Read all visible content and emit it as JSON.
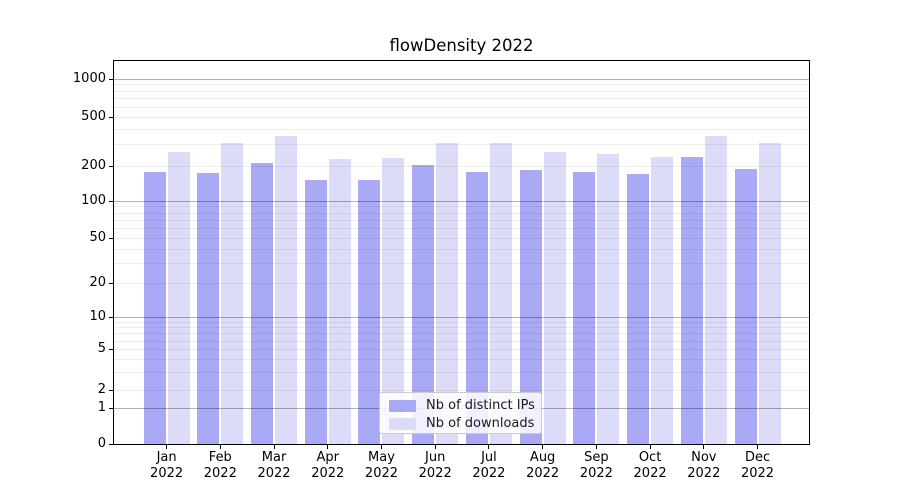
{
  "chart_data": {
    "type": "bar",
    "title": "flowDensity 2022",
    "categories": [
      "Jan",
      "Feb",
      "Mar",
      "Apr",
      "May",
      "Jun",
      "Jul",
      "Aug",
      "Sep",
      "Oct",
      "Nov",
      "Dec"
    ],
    "xtick_year": "2022",
    "series": [
      {
        "name": "Nb of distinct IPs",
        "color": "#a9a9f6",
        "values": [
          178,
          173,
          210,
          152,
          151,
          205,
          178,
          186,
          179,
          172,
          238,
          190
        ]
      },
      {
        "name": "Nb of downloads",
        "color": "#dcdcf8",
        "values": [
          258,
          305,
          352,
          226,
          234,
          308,
          309,
          260,
          252,
          236,
          350,
          306
        ]
      }
    ],
    "yscale": "symlog",
    "ytick_labels": [
      0,
      1,
      2,
      5,
      10,
      20,
      50,
      100,
      200,
      500,
      1000
    ],
    "ylim": [
      0,
      1400
    ],
    "grid": true,
    "legend_position": "lower center"
  },
  "colors": {
    "major_grid": "#b3b3b3",
    "minor_grid": "#ededed",
    "axis": "#000000",
    "legend_border": "#cbcbcb"
  }
}
